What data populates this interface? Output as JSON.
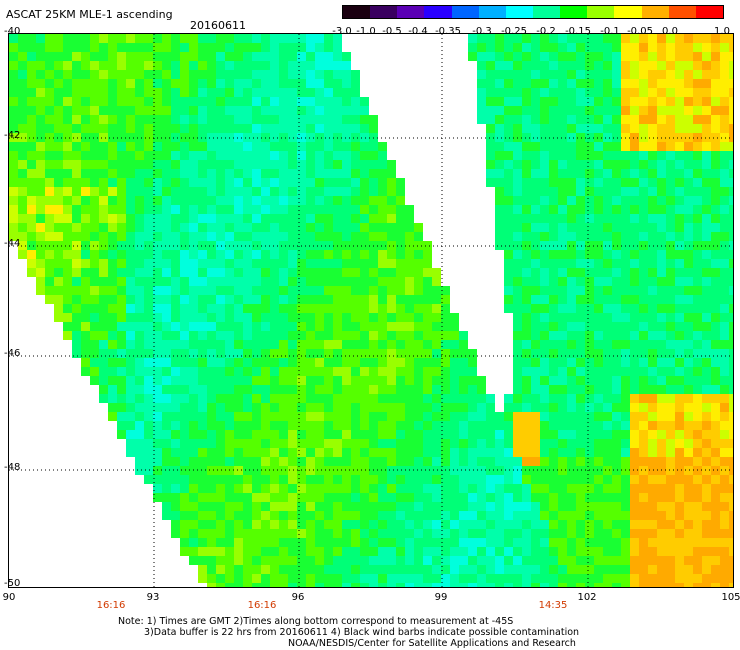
{
  "header": {
    "title": "ASCAT 25KM MLE-1 ascending",
    "date": "20160611"
  },
  "colorbar": {
    "labels": [
      "-3.0",
      "-1.0",
      "-0.5",
      "-0.4",
      "-0.35",
      "-0.3",
      "-0.25",
      "-0.2",
      "-0.15",
      "-0.1",
      "-0.05",
      "0.0",
      "1.0"
    ],
    "colors": [
      "#1a0010",
      "#3a0060",
      "#5b00b5",
      "#2a00ff",
      "#0066ff",
      "#00b0ff",
      "#00ffff",
      "#00ff99",
      "#00ff00",
      "#99ff00",
      "#ffff00",
      "#ffb000",
      "#ff5000",
      "#ff0000"
    ]
  },
  "axes": {
    "lat_labels": [
      "-40",
      "-42",
      "-44",
      "-46",
      "-48",
      "-50"
    ],
    "lon_labels": [
      "90",
      "93",
      "96",
      "99",
      "102",
      "105"
    ],
    "time_labels": [
      "16:16",
      "16:16",
      "14:35"
    ]
  },
  "notes": [
    "Note: 1) Times are GMT 2)Times along bottom correspond to measurement at -45S",
    "3)Data buffer is 22 hrs from 20160611 4) Black wind barbs indicate possible contamination",
    "NOAA/NESDIS/Center for Satellite Applications and Research"
  ]
}
